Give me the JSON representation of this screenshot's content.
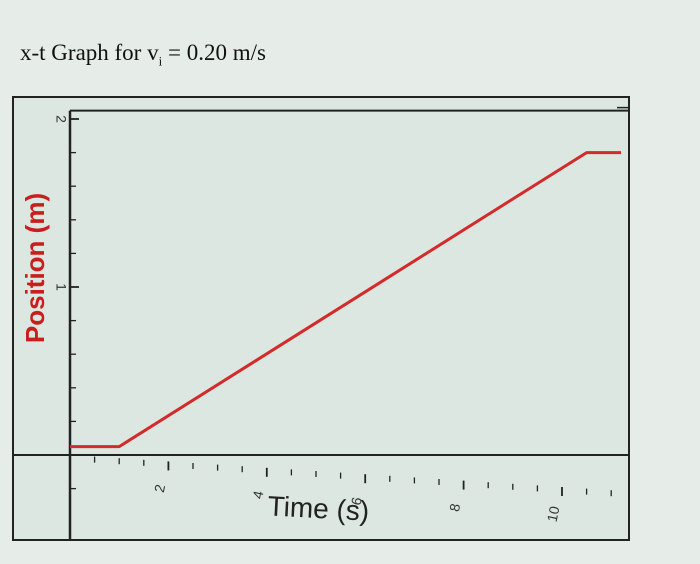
{
  "page": {
    "title_prefix": "x-t Graph for v",
    "title_subscript": "i",
    "title_suffix": " = 0.20 m/s"
  },
  "chart_data": {
    "type": "line",
    "title": "x-t Graph for vi = 0.20 m/s",
    "xlabel": "Time (s)",
    "ylabel": "Position (m)",
    "xlim": [
      0,
      11.2
    ],
    "ylim": [
      -0.2,
      2.05
    ],
    "xticks": [
      2,
      4,
      6,
      8,
      10
    ],
    "xtick_labels": [
      "2",
      "4",
      "6",
      "8",
      "10"
    ],
    "yticks": [
      1,
      2
    ],
    "ytick_labels": [
      "1",
      "2"
    ],
    "grid": false,
    "legend": "none",
    "series": [
      {
        "x": [
          0.0,
          1.0,
          10.5,
          11.2
        ],
        "y": [
          0.05,
          0.05,
          1.8,
          1.8
        ],
        "color": "#d42a2a"
      }
    ],
    "colors": {
      "frame": "#222222",
      "plot_background": "#dce7e2",
      "label_red": "#c81e1e"
    }
  }
}
